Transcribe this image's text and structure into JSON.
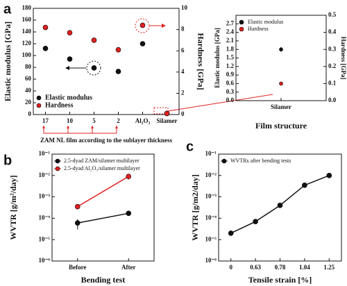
{
  "chart_data": [
    {
      "type": "scatter",
      "label": "a",
      "x_label": "ZAM NL film according to the sublayer thickness",
      "y_label": "Elastic modulus [GPa]",
      "y2_label": "Hardness [GPa]",
      "categories": [
        "17",
        "10",
        "5",
        "2",
        "Al₂O₃",
        "Silamer"
      ],
      "ylim": [
        0,
        180
      ],
      "yticks": [
        0,
        20,
        40,
        60,
        80,
        100,
        120,
        140,
        160,
        180
      ],
      "y2lim": [
        0,
        10
      ],
      "y2ticks": [
        0,
        2,
        4,
        6,
        8,
        10
      ],
      "legend": "lower left",
      "series": [
        {
          "name": "Elastic modulus",
          "color": "#111111",
          "values": [
            112,
            94,
            79,
            73,
            120,
            1.8
          ]
        },
        {
          "name": "Hardness",
          "color": "#e02020",
          "axis": "y2",
          "values": [
            8.2,
            7.7,
            7.0,
            6.1,
            8.4,
            0.1
          ]
        }
      ]
    },
    {
      "type": "scatter",
      "x_label": "Film structure",
      "y_label": "Elastic modulus [GPa]",
      "y2_label": "Hardness [GPa]",
      "categories": [
        "Silamer"
      ],
      "ylim": [
        0,
        3
      ],
      "yticks": [
        {
          "value": 0,
          "label": "0.0"
        },
        0.3,
        0.6,
        0.9,
        1.2,
        1.5,
        1.8,
        2.1,
        2.4,
        2.7
      ],
      "y2lim": [
        0,
        0.5
      ],
      "y2ticks": [
        {
          "value": 0,
          "label": "0.0"
        },
        0.1,
        0.2,
        0.3,
        0.4,
        0.5
      ],
      "legend": "upper left",
      "series": [
        {
          "name": "Elastic modulus",
          "color": "#111111",
          "values": [
            1.8
          ],
          "errors": [
            0.08
          ]
        },
        {
          "name": "Hardness",
          "color": "#e02020",
          "axis": "y2",
          "values": [
            0.1
          ]
        }
      ]
    },
    {
      "type": "line",
      "label": "b",
      "x_label": "Bending test",
      "y_label": "WVTR [g/m²/day]",
      "categories": [
        "Before",
        "After"
      ],
      "yscale": "log",
      "ylim": [
        1e-06,
        0.1
      ],
      "yticks": [
        {
          "value": 1e-06,
          "label": "10⁻⁶"
        },
        {
          "value": 1e-05,
          "label": "10⁻⁵"
        },
        {
          "value": 0.0001,
          "label": "10⁻⁴"
        },
        {
          "value": 0.001,
          "label": "10⁻³"
        },
        {
          "value": 0.01,
          "label": "10⁻²"
        },
        {
          "value": 0.1,
          "label": "10⁻¹"
        }
      ],
      "legend": "upper left",
      "series": [
        {
          "name": "2.5-dyad ZAM/silamer multilayer",
          "color": "#111111",
          "values": [
            6e-05,
            0.00017
          ],
          "errors": [
            3e-05,
            2e-05
          ]
        },
        {
          "name": "2.5-dyad Al₂O₃/silamer multilayer",
          "color": "#e02020",
          "values": [
            0.00035,
            0.009
          ],
          "errors": [
            8e-05,
            0.0025
          ]
        }
      ]
    },
    {
      "type": "line",
      "label": "c",
      "x_label": "Tensile strain [%]",
      "y_label": "WVTR [g/m2/day]",
      "categories": [
        "0",
        "0.63",
        "0.78",
        "1.04",
        "1.25"
      ],
      "yscale": "log",
      "ylim": [
        1e-06,
        0.1
      ],
      "yticks": [
        {
          "value": 1e-06,
          "label": "10⁻⁶"
        },
        {
          "value": 1e-05,
          "label": "10⁻⁵"
        },
        {
          "value": 0.0001,
          "label": "10⁻⁴"
        },
        {
          "value": 0.001,
          "label": "10⁻³"
        },
        {
          "value": 0.01,
          "label": "10⁻²"
        },
        {
          "value": 0.1,
          "label": "10⁻¹"
        }
      ],
      "legend": "upper left",
      "series": [
        {
          "name": "WVTRs after bending tests",
          "color": "#111111",
          "values": [
            2e-05,
            7e-05,
            0.0004,
            0.0035,
            0.01
          ]
        }
      ]
    }
  ]
}
